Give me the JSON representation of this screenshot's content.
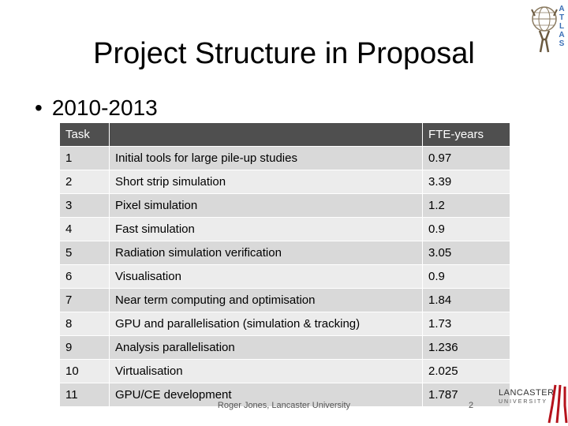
{
  "slide": {
    "title": "Project Structure in Proposal",
    "bullet": "2010-2013",
    "footer": "Roger Jones, Lancaster University",
    "page_number": "2"
  },
  "table": {
    "headers": [
      "Task",
      "",
      "FTE-years"
    ],
    "rows": [
      {
        "task": "1",
        "description": "Initial tools for large pile-up studies",
        "fte": "0.97"
      },
      {
        "task": "2",
        "description": "Short strip simulation",
        "fte": "3.39"
      },
      {
        "task": "3",
        "description": "Pixel simulation",
        "fte": "1.2"
      },
      {
        "task": "4",
        "description": "Fast simulation",
        "fte": "0.9"
      },
      {
        "task": "5",
        "description": "Radiation simulation verification",
        "fte": "3.05"
      },
      {
        "task": "6",
        "description": "Visualisation",
        "fte": "0.9"
      },
      {
        "task": "7",
        "description": "Near term computing and optimisation",
        "fte": "1.84"
      },
      {
        "task": "8",
        "description": "GPU and parallelisation (simulation & tracking)",
        "fte": "1.73"
      },
      {
        "task": "9",
        "description": "Analysis parallelisation",
        "fte": "1.236"
      },
      {
        "task": "10",
        "description": "Virtualisation",
        "fte": "2.025"
      },
      {
        "task": "11",
        "description": "GPU/CE development",
        "fte": "1.787"
      }
    ]
  },
  "logos": {
    "atlas": {
      "letters": "ATLAS",
      "icon": "atlas-globe-icon",
      "color": "#3b6fb6"
    },
    "lancaster": {
      "text": "LANCASTER",
      "sub": "UNIVERSITY",
      "icon": "lancaster-logo-icon",
      "color": "#b5121b"
    }
  },
  "colors": {
    "header_bg": "#4f4f4f",
    "row_odd": "#d9d9d9",
    "row_even": "#ececec"
  }
}
